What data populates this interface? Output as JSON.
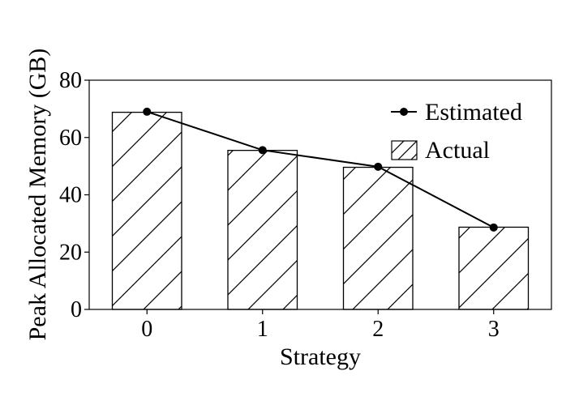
{
  "chart_data": {
    "type": "bar",
    "categories": [
      "0",
      "1",
      "2",
      "3"
    ],
    "series": [
      {
        "name": "Actual",
        "kind": "bar",
        "values": [
          68.8,
          55.5,
          49.6,
          28.7
        ]
      },
      {
        "name": "Estimated",
        "kind": "line",
        "values": [
          69.0,
          55.6,
          49.8,
          28.6
        ]
      }
    ],
    "xlabel": "Strategy",
    "ylabel": "Peak Allocated Memory (GB)",
    "ylim": [
      0,
      80
    ],
    "yticks": [
      "0",
      "20",
      "40",
      "60",
      "80"
    ],
    "grid": false,
    "legend_position": "top-right",
    "bar_fill": "hatched",
    "colors": {
      "bar_edge": "#000000",
      "line": "#000000",
      "marker": "#000000"
    }
  }
}
